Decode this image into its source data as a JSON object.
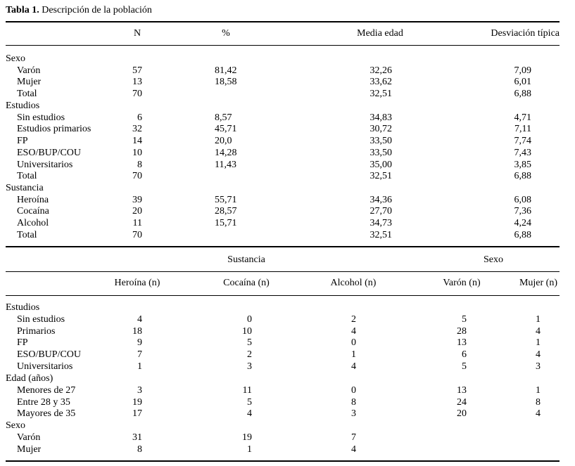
{
  "caption": {
    "label": "Tabla 1.",
    "text": "Descripción de la población"
  },
  "table1": {
    "headers": [
      "N",
      "%",
      "Media edad",
      "Desviación típica"
    ],
    "groups": [
      {
        "name": "Sexo",
        "rows": [
          [
            "Varón",
            "57",
            "81,42",
            "32,26",
            "7,09"
          ],
          [
            "Mujer",
            "13",
            "18,58",
            "33,62",
            "6,01"
          ],
          [
            "Total",
            "70",
            null,
            "32,51",
            "6,88"
          ]
        ]
      },
      {
        "name": "Estudios",
        "rows": [
          [
            "Sin estudios",
            "6",
            "8,57",
            "34,83",
            "4,71"
          ],
          [
            "Estudios primarios",
            "32",
            "45,71",
            "30,72",
            "7,11"
          ],
          [
            "FP",
            "14",
            "20,0",
            "33,50",
            "7,74"
          ],
          [
            "ESO/BUP/COU",
            "10",
            "14,28",
            "33,50",
            "7,43"
          ],
          [
            "Universitarios",
            "8",
            "11,43",
            "35,00",
            "3,85"
          ],
          [
            "Total",
            "70",
            null,
            "32,51",
            "6,88"
          ]
        ]
      },
      {
        "name": "Sustancia",
        "rows": [
          [
            "Heroína",
            "39",
            "55,71",
            "34,36",
            "6,08"
          ],
          [
            "Cocaína",
            "20",
            "28,57",
            "27,70",
            "7,36"
          ],
          [
            "Alcohol",
            "11",
            "15,71",
            "34,73",
            "4,24"
          ],
          [
            "Total",
            "70",
            null,
            "32,51",
            "6,88"
          ]
        ]
      }
    ]
  },
  "table2": {
    "group_headers": [
      "Sustancia",
      "Sexo"
    ],
    "headers": [
      "Heroína (n)",
      "Cocaína (n)",
      "Alcohol (n)",
      "Varón (n)",
      "Mujer (n)"
    ],
    "groups": [
      {
        "name": "Estudios",
        "rows": [
          [
            "Sin estudios",
            "4",
            "0",
            "2",
            "5",
            "1"
          ],
          [
            "Primarios",
            "18",
            "10",
            "4",
            "28",
            "4"
          ],
          [
            "FP",
            "9",
            "5",
            "0",
            "13",
            "1"
          ],
          [
            "ESO/BUP/COU",
            "7",
            "2",
            "1",
            "6",
            "4"
          ],
          [
            "Universitarios",
            "1",
            "3",
            "4",
            "5",
            "3"
          ]
        ]
      },
      {
        "name": "Edad (años)",
        "rows": [
          [
            "Menores de 27",
            "3",
            "11",
            "0",
            "13",
            "1"
          ],
          [
            "Entre 28 y 35",
            "19",
            "5",
            "8",
            "24",
            "8"
          ],
          [
            "Mayores de 35",
            "17",
            "4",
            "3",
            "20",
            "4"
          ]
        ]
      },
      {
        "name": "Sexo",
        "rows": [
          [
            "Varón",
            "31",
            "19",
            "7",
            null,
            null
          ],
          [
            "Mujer",
            "8",
            "1",
            "4",
            null,
            null
          ]
        ]
      }
    ]
  }
}
